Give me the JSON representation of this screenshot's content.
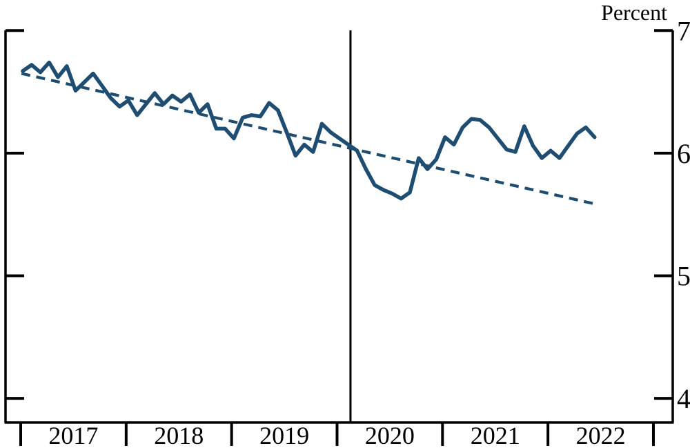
{
  "chart_data": {
    "type": "line",
    "title": "",
    "ylabel": "Percent",
    "xlabel": "",
    "legend_position": "none",
    "grid": false,
    "ylim": [
      3.8,
      7.0
    ],
    "y_ticks": [
      7,
      6,
      5,
      4
    ],
    "y_tick_labels": [
      "7",
      "6",
      "5",
      "4"
    ],
    "x_tick_labels": [
      "2017",
      "2018",
      "2019",
      "2020",
      "2021",
      "2022"
    ],
    "x_start_month": "2017-01",
    "x_end_month": "2022-06",
    "series": [
      {
        "name": "monthly-rate-solid",
        "style": "solid",
        "color": "#1f4d72",
        "values": [
          6.67,
          6.72,
          6.66,
          6.74,
          6.62,
          6.71,
          6.51,
          6.58,
          6.65,
          6.55,
          6.45,
          6.38,
          6.43,
          6.31,
          6.4,
          6.49,
          6.4,
          6.47,
          6.42,
          6.48,
          6.33,
          6.4,
          6.2,
          6.2,
          6.12,
          6.29,
          6.31,
          6.3,
          6.41,
          6.35,
          6.17,
          5.98,
          6.07,
          6.01,
          6.24,
          6.17,
          6.12,
          6.07,
          6.02,
          5.87,
          5.74,
          5.7,
          5.67,
          5.63,
          5.68,
          5.96,
          5.87,
          5.95,
          6.13,
          6.07,
          6.21,
          6.28,
          6.27,
          6.21,
          6.12,
          6.03,
          6.01,
          6.22,
          6.06,
          5.96,
          6.02,
          5.96,
          6.06,
          6.16,
          6.21,
          6.13
        ]
      },
      {
        "name": "linear-trend-dashed",
        "style": "dashed",
        "color": "#1f4d72",
        "start": {
          "month_index": -0.15,
          "value": 6.65
        },
        "end": {
          "month_index": 65.4,
          "value": 5.58
        }
      }
    ],
    "vertical_line": {
      "month_index": 37.25,
      "color": "#000000"
    }
  },
  "colors": {
    "series": "#1f4d72",
    "axis": "#000000",
    "background": "#ffffff"
  }
}
